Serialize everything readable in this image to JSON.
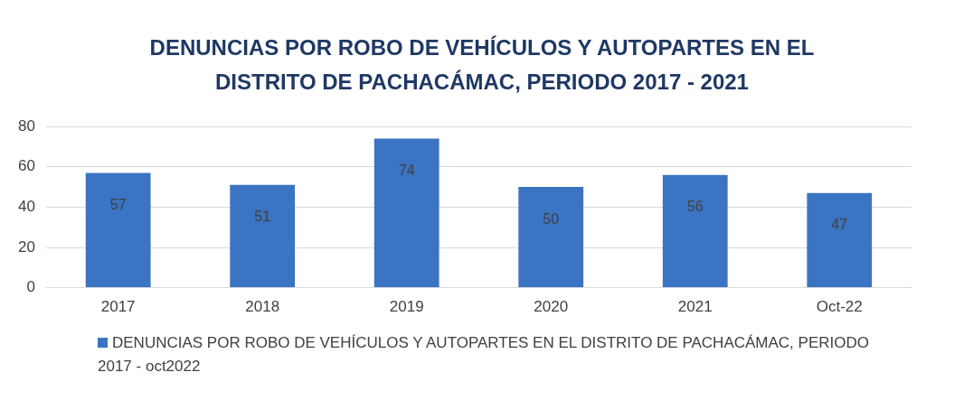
{
  "chart_data": {
    "type": "bar",
    "title": "DENUNCIAS POR ROBO DE VEHÍCULOS Y AUTOPARTES EN EL DISTRITO DE PACHACÁMAC, PERIODO 2017 - 2021",
    "categories": [
      "2017",
      "2018",
      "2019",
      "2020",
      "2021",
      "Oct-22"
    ],
    "series": [
      {
        "name": "DENUNCIAS POR ROBO DE VEHÍCULOS Y AUTOPARTES EN EL DISTRITO DE PACHACÁMAC, PERIODO 2017 - oct2022",
        "color": "#3a74c2",
        "values": [
          57,
          51,
          74,
          50,
          56,
          47
        ]
      }
    ],
    "ylim": [
      0,
      80
    ],
    "yticks": [
      0,
      20,
      40,
      60,
      80
    ],
    "grid": "y",
    "legend": "bottom",
    "data_labels": true
  }
}
